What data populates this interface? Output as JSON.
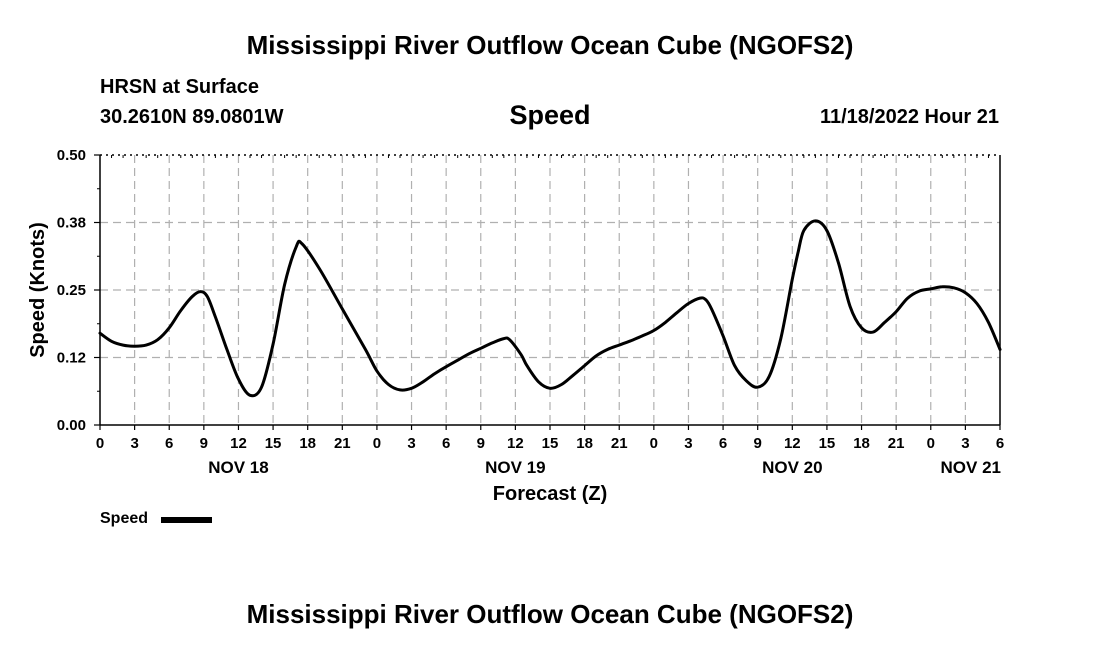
{
  "header": {
    "title": "Mississippi River Outflow Ocean Cube (NGOFS2)",
    "station": "HRSN at Surface",
    "coordinates": "30.2610N  89.0801W",
    "variable": "Speed",
    "datetime": "11/18/2022 Hour 21"
  },
  "footer": {
    "title": "Mississippi River Outflow Ocean Cube (NGOFS2)"
  },
  "legend": {
    "label": "Speed"
  },
  "colors": {
    "line": "#000000",
    "grid": "#b0b0b0"
  },
  "chart_data": {
    "type": "line",
    "title": "Speed",
    "xlabel": "Forecast (Z)",
    "ylabel": "Speed (Knots)",
    "x_unit": "hours since NOV 18 00Z",
    "xlim": [
      0,
      78
    ],
    "ylim": [
      0,
      0.5
    ],
    "ytick_labels": [
      "0.00",
      "0.12",
      "0.25",
      "0.38",
      "0.50"
    ],
    "yticks": [
      0,
      0.125,
      0.25,
      0.375,
      0.5
    ],
    "xticks": [
      0,
      3,
      6,
      9,
      12,
      15,
      18,
      21,
      24,
      27,
      30,
      33,
      36,
      39,
      42,
      45,
      48,
      51,
      54,
      57,
      60,
      63,
      66,
      69,
      72,
      75,
      78
    ],
    "xtick_labels": [
      "0",
      "3",
      "6",
      "9",
      "12",
      "15",
      "18",
      "21",
      "0",
      "3",
      "6",
      "9",
      "12",
      "15",
      "18",
      "21",
      "0",
      "3",
      "6",
      "9",
      "12",
      "15",
      "18",
      "21",
      "0",
      "3",
      "6"
    ],
    "day_labels": [
      {
        "label": "NOV 18",
        "x": 12
      },
      {
        "label": "NOV 19",
        "x": 36
      },
      {
        "label": "NOV 20",
        "x": 60
      },
      {
        "label": "NOV 21",
        "x": 78
      }
    ],
    "grid": true,
    "series": [
      {
        "name": "Speed",
        "x": [
          0,
          1,
          2,
          3,
          4,
          5,
          6,
          7,
          8,
          8.7,
          9.3,
          10,
          11,
          12,
          13,
          14,
          15,
          16,
          17,
          17.5,
          19,
          21,
          23,
          24,
          25,
          26,
          27,
          28,
          29,
          30,
          31,
          32,
          33,
          34,
          35,
          35.5,
          36.5,
          37,
          38,
          39,
          40,
          41,
          42,
          43,
          44,
          45,
          46,
          47,
          48,
          49,
          50,
          51,
          52,
          52.5,
          53,
          54,
          55,
          56,
          57,
          58,
          59,
          60,
          60.5,
          61,
          62,
          63,
          64,
          65,
          66,
          67,
          68,
          69,
          70,
          71,
          72,
          73,
          74,
          75,
          76,
          77,
          78
        ],
        "values": [
          0.17,
          0.155,
          0.148,
          0.146,
          0.148,
          0.158,
          0.18,
          0.212,
          0.238,
          0.247,
          0.238,
          0.2,
          0.14,
          0.085,
          0.055,
          0.07,
          0.15,
          0.26,
          0.33,
          0.336,
          0.29,
          0.215,
          0.14,
          0.1,
          0.075,
          0.065,
          0.068,
          0.08,
          0.095,
          0.108,
          0.12,
          0.132,
          0.142,
          0.152,
          0.16,
          0.158,
          0.13,
          0.11,
          0.08,
          0.068,
          0.075,
          0.092,
          0.11,
          0.128,
          0.14,
          0.148,
          0.156,
          0.165,
          0.175,
          0.19,
          0.208,
          0.225,
          0.235,
          0.232,
          0.215,
          0.165,
          0.11,
          0.082,
          0.07,
          0.09,
          0.16,
          0.27,
          0.32,
          0.36,
          0.378,
          0.36,
          0.3,
          0.22,
          0.18,
          0.172,
          0.19,
          0.21,
          0.235,
          0.248,
          0.252,
          0.256,
          0.254,
          0.245,
          0.225,
          0.19,
          0.14
        ]
      }
    ]
  }
}
